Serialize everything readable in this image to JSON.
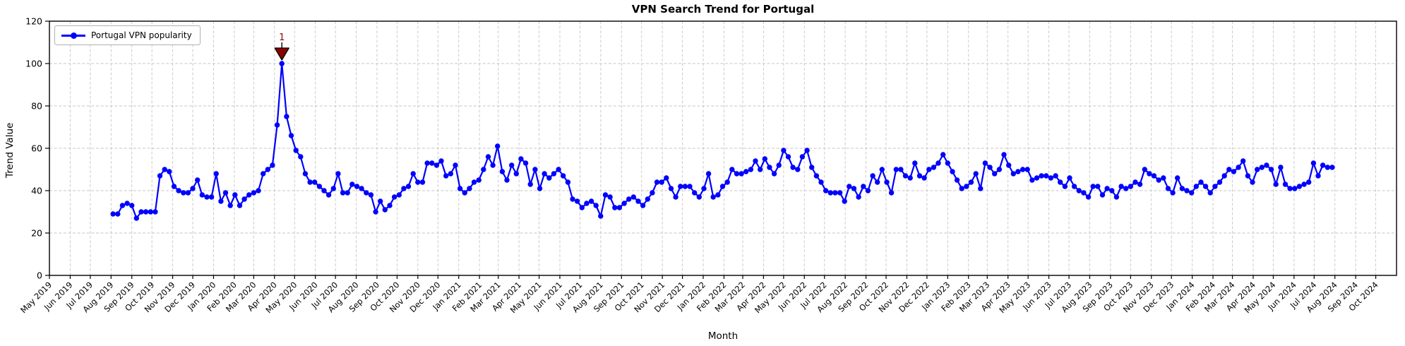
{
  "chart_data": {
    "type": "line",
    "title": "VPN Search Trend for Portugal",
    "xlabel": "Month",
    "ylabel": "Trend Value",
    "ylim": [
      0,
      120
    ],
    "yticks": [
      0,
      20,
      40,
      60,
      80,
      100,
      120
    ],
    "grid": true,
    "grid_color": "#c6c6c6",
    "spine_color": "#000000",
    "legend_position": "upper left",
    "x_axis": {
      "tick_labels": [
        "May 2019",
        "Jun 2019",
        "Jul 2019",
        "Aug 2019",
        "Sep 2019",
        "Oct 2019",
        "Nov 2019",
        "Dec 2019",
        "Jan 2020",
        "Feb 2020",
        "Mar 2020",
        "Apr 2020",
        "May 2020",
        "Jun 2020",
        "Jul 2020",
        "Aug 2020",
        "Sep 2020",
        "Oct 2020",
        "Nov 2020",
        "Dec 2020",
        "Jan 2021",
        "Feb 2021",
        "Mar 2021",
        "Apr 2021",
        "May 2021",
        "Jun 2021",
        "Jul 2021",
        "Aug 2021",
        "Sep 2021",
        "Oct 2021",
        "Nov 2021",
        "Dec 2021",
        "Jan 2022",
        "Feb 2022",
        "Mar 2022",
        "Apr 2022",
        "May 2022",
        "Jun 2022",
        "Jul 2022",
        "Aug 2022",
        "Sep 2022",
        "Oct 2022",
        "Nov 2022",
        "Dec 2022",
        "Jan 2023",
        "Feb 2023",
        "Mar 2023",
        "Apr 2023",
        "May 2023",
        "Jun 2023",
        "Jul 2023",
        "Aug 2023",
        "Sep 2023",
        "Oct 2023",
        "Nov 2023",
        "Dec 2023",
        "Jan 2024",
        "Feb 2024",
        "Mar 2024",
        "Apr 2024",
        "May 2024",
        "Jun 2024",
        "Jul 2024",
        "Aug 2024",
        "Sep 2024",
        "Oct 2024"
      ]
    },
    "series": [
      {
        "name": "Portugal VPN popularity",
        "color": "#0000ff",
        "start_date": "2019-08-04",
        "interval": "weekly",
        "values": [
          29,
          29,
          33,
          34,
          33,
          27,
          30,
          30,
          30,
          30,
          47,
          50,
          49,
          42,
          40,
          39,
          39,
          41,
          45,
          38,
          37,
          37,
          48,
          35,
          39,
          33,
          38,
          33,
          36,
          38,
          39,
          40,
          48,
          50,
          52,
          71,
          100,
          75,
          66,
          59,
          56,
          48,
          44,
          44,
          42,
          40,
          38,
          41,
          48,
          39,
          39,
          43,
          42,
          41,
          39,
          38,
          30,
          35,
          31,
          33,
          37,
          38,
          41,
          42,
          48,
          44,
          44,
          53,
          53,
          52,
          54,
          47,
          48,
          52,
          41,
          39,
          41,
          44,
          45,
          50,
          56,
          52,
          61,
          49,
          45,
          52,
          48,
          55,
          53,
          43,
          50,
          41,
          48,
          46,
          48,
          50,
          47,
          44,
          36,
          35,
          32,
          34,
          35,
          33,
          28,
          38,
          37,
          32,
          32,
          34,
          36,
          37,
          35,
          33,
          36,
          39,
          44,
          44,
          46,
          41,
          37,
          42,
          42,
          42,
          39,
          37,
          41,
          48,
          37,
          38,
          42,
          44,
          50,
          48,
          48,
          49,
          50,
          54,
          50,
          55,
          51,
          48,
          52,
          59,
          56,
          51,
          50,
          56,
          59,
          51,
          47,
          44,
          40,
          39,
          39,
          39,
          35,
          42,
          41,
          37,
          42,
          40,
          47,
          44,
          50,
          44,
          39,
          50,
          50,
          47,
          46,
          53,
          47,
          46,
          50,
          51,
          53,
          57,
          53,
          49,
          45,
          41,
          42,
          44,
          48,
          41,
          53,
          51,
          48,
          50,
          57,
          52,
          48,
          49,
          50,
          50,
          45,
          46,
          47,
          47,
          46,
          47,
          44,
          42,
          46,
          42,
          40,
          39,
          37,
          42,
          42,
          38,
          41,
          40,
          37,
          42,
          41,
          42,
          44,
          43,
          50,
          48,
          47,
          45,
          46,
          41,
          39,
          46,
          41,
          40,
          39,
          42,
          44,
          42,
          39,
          42,
          44,
          47,
          50,
          49,
          51,
          54,
          47,
          44,
          50,
          51,
          52,
          50,
          43,
          51,
          43,
          41,
          41,
          42,
          43,
          44,
          53,
          47,
          52,
          51,
          51
        ]
      }
    ],
    "annotation": {
      "label": "1",
      "date": "2020-04-12",
      "value": 100,
      "marker": "triangle-down",
      "color": "#8b0000",
      "edge_color": "#000000"
    }
  }
}
